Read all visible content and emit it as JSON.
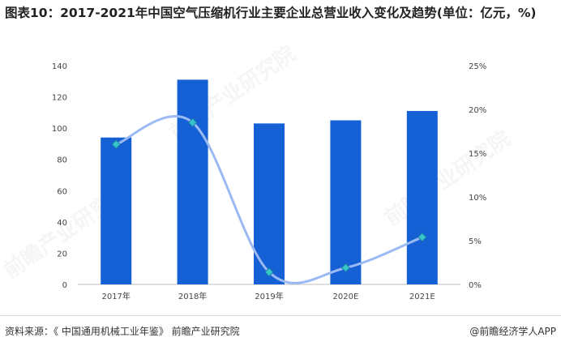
{
  "title": "图表10：2017-2021年中国空气压缩机行业主要企业总营业收入变化及趋势(单位：亿元，%)",
  "chart_data": {
    "type": "bar",
    "categories": [
      "2017年",
      "2018年",
      "2019年",
      "2020E",
      "2021E"
    ],
    "series": [
      {
        "type": "bar",
        "axis": "left",
        "values": [
          94,
          131,
          103,
          105,
          111
        ],
        "color": "#1560d4"
      },
      {
        "type": "line",
        "axis": "right",
        "smooth": true,
        "values": [
          16.0,
          18.5,
          1.4,
          1.9,
          5.4
        ],
        "color": "#9bb9f2"
      }
    ],
    "ylim_left": [
      0,
      140
    ],
    "yticks_left": [
      "0",
      "20",
      "40",
      "60",
      "80",
      "100",
      "120",
      "140"
    ],
    "ylim_right": [
      0,
      25
    ],
    "yticks_right": [
      "0%",
      "5%",
      "10%",
      "15%",
      "20%",
      "25%"
    ],
    "grid": false,
    "legend": "none"
  },
  "watermark": "前瞻产业研究院",
  "footer": {
    "source": "资料来源：《 中国通用机械工业年鉴》 前瞻产业研究院",
    "brand": "@前瞻经济学人APP"
  }
}
